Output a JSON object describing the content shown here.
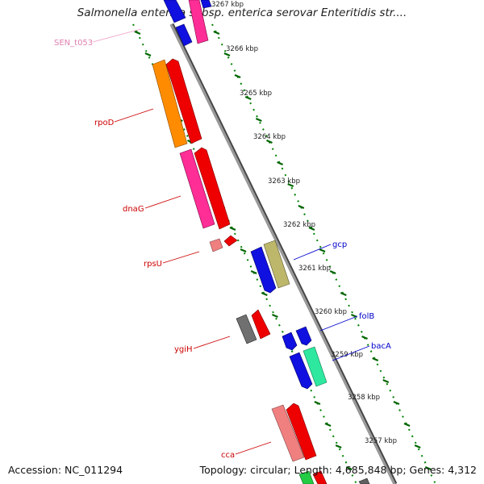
{
  "title": "Salmonella enterica subsp. enterica serovar Enteritidis str....",
  "footer": {
    "accession": "Accession: NC_011294",
    "summary": "Topology: circular; Length: 4,685,848 bp; Genes: 4,312"
  },
  "colors": {
    "backbone": "#808080",
    "tick_minor": "#008000",
    "tick_major": "#006400",
    "label_forward": "#cc0000",
    "label_reverse": "#0000cc",
    "label_trna": "#e080b0"
  },
  "scale": {
    "unit": "kbp",
    "ticks": [
      {
        "label": "3267 kbp"
      },
      {
        "label": "3266 kbp"
      },
      {
        "label": "3265 kbp"
      },
      {
        "label": "3264 kbp"
      },
      {
        "label": "3263 kbp"
      },
      {
        "label": "3262 kbp"
      },
      {
        "label": "3261 kbp"
      },
      {
        "label": "3260 kbp"
      },
      {
        "label": "3259 kbp"
      },
      {
        "label": "3258 kbp"
      },
      {
        "label": "3257 kbp"
      }
    ]
  },
  "gene_labels": [
    {
      "name": "SEN_t053",
      "color": "#e080b0"
    },
    {
      "name": "rpoD",
      "color": "#cc0000"
    },
    {
      "name": "dnaG",
      "color": "#cc0000"
    },
    {
      "name": "rpsU",
      "color": "#cc0000"
    },
    {
      "name": "ygiH",
      "color": "#cc0000"
    },
    {
      "name": "cca",
      "color": "#cc0000"
    },
    {
      "name": "gcp",
      "color": "#0000cc"
    },
    {
      "name": "folB",
      "color": "#0000cc"
    },
    {
      "name": "bacA",
      "color": "#0000cc"
    }
  ]
}
